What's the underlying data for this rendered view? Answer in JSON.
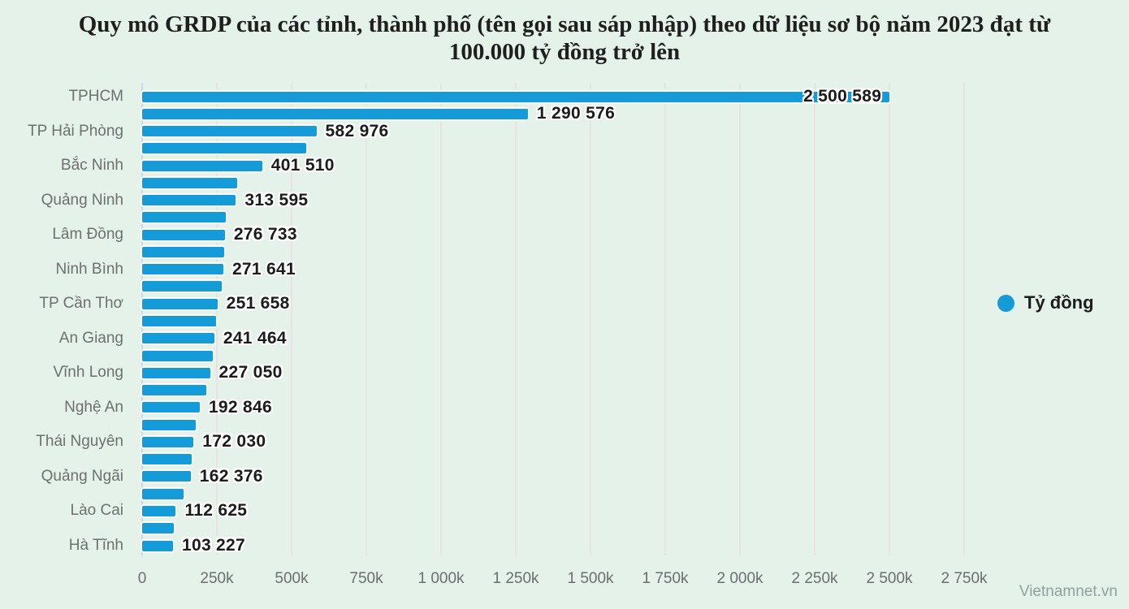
{
  "page": {
    "background_color": "#E4F2EA",
    "watermark": "Vietnamnet.vn"
  },
  "chart_data": {
    "type": "bar",
    "orientation": "horizontal",
    "title": "Quy mô GRDP của các tỉnh, thành phố (tên gọi sau sáp nhập) theo dữ liệu sơ bộ năm 2023 đạt từ 100.000 tỷ đồng trở lên",
    "title_lines": [
      "Quy mô GRDP của các tỉnh, thành phố (tên gọi sau sáp nhập) theo dữ liệu sơ bộ năm 2023 đạt từ",
      "100.000 tỷ đồng trở lên"
    ],
    "legend": {
      "label": "Tỷ đồng",
      "color": "#149BD8",
      "position": "right"
    },
    "colors": {
      "bar": "#149BD8",
      "gridline": "#EADFE1",
      "axis_line": "#C9D6EE",
      "category_label": "#6E706F",
      "value_label": "#1B1B1B"
    },
    "x_axis": {
      "gridlines": true,
      "range": [
        0,
        2750000
      ],
      "ticks": [
        {
          "label": "0",
          "value": 0
        },
        {
          "label": "250k",
          "value": 250000
        },
        {
          "label": "500k",
          "value": 500000
        },
        {
          "label": "750k",
          "value": 750000
        },
        {
          "label": "1 000k",
          "value": 1000000
        },
        {
          "label": "1 250k",
          "value": 1250000
        },
        {
          "label": "1 500k",
          "value": 1500000
        },
        {
          "label": "1 750k",
          "value": 1750000
        },
        {
          "label": "2 000k",
          "value": 2000000
        },
        {
          "label": "2 250k",
          "value": 2250000
        },
        {
          "label": "2 500k",
          "value": 2500000
        },
        {
          "label": "2 750k",
          "value": 2750000
        }
      ]
    },
    "bars": [
      {
        "label": "TPHCM",
        "value": 2500589,
        "value_label": "2 500 589"
      },
      {
        "label": "",
        "value": 1290576,
        "value_label": "1 290 576"
      },
      {
        "label": "TP Hải Phòng",
        "value": 582976,
        "value_label": "582 976"
      },
      {
        "label": "",
        "value": 549000,
        "value_label": "",
        "estimated": true
      },
      {
        "label": "Bắc Ninh",
        "value": 401510,
        "value_label": "401 510"
      },
      {
        "label": "",
        "value": 318000,
        "value_label": "",
        "estimated": true
      },
      {
        "label": "Quảng Ninh",
        "value": 313595,
        "value_label": "313 595"
      },
      {
        "label": "",
        "value": 281000,
        "value_label": "",
        "estimated": true
      },
      {
        "label": "Lâm Đồng",
        "value": 276733,
        "value_label": "276 733"
      },
      {
        "label": "",
        "value": 274500,
        "value_label": "",
        "estimated": true
      },
      {
        "label": "Ninh Bình",
        "value": 271641,
        "value_label": "271 641"
      },
      {
        "label": "",
        "value": 265000,
        "value_label": "",
        "estimated": true
      },
      {
        "label": "TP Cần Thơ",
        "value": 251658,
        "value_label": "251 658"
      },
      {
        "label": "",
        "value": 247000,
        "value_label": "",
        "estimated": true
      },
      {
        "label": "An Giang",
        "value": 241464,
        "value_label": "241 464"
      },
      {
        "label": "",
        "value": 236000,
        "value_label": "",
        "estimated": true
      },
      {
        "label": "Vĩnh Long",
        "value": 227050,
        "value_label": "227 050"
      },
      {
        "label": "",
        "value": 216000,
        "value_label": "",
        "estimated": true
      },
      {
        "label": "Nghệ An",
        "value": 192846,
        "value_label": "192 846"
      },
      {
        "label": "",
        "value": 179000,
        "value_label": "",
        "estimated": true
      },
      {
        "label": "Thái Nguyên",
        "value": 172030,
        "value_label": "172 030"
      },
      {
        "label": "",
        "value": 165000,
        "value_label": "",
        "estimated": true
      },
      {
        "label": "Quảng Ngãi",
        "value": 162376,
        "value_label": "162 376"
      },
      {
        "label": "",
        "value": 138000,
        "value_label": "",
        "estimated": true
      },
      {
        "label": "Lào Cai",
        "value": 112625,
        "value_label": "112 625"
      },
      {
        "label": "",
        "value": 106000,
        "value_label": "",
        "estimated": true
      },
      {
        "label": "Hà Tĩnh",
        "value": 103227,
        "value_label": "103 227"
      }
    ]
  }
}
